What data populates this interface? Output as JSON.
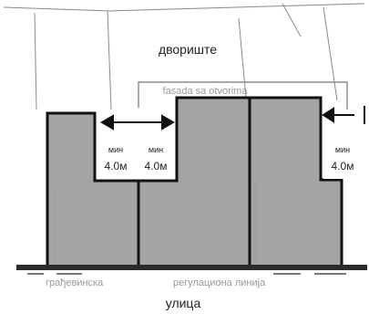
{
  "labels": {
    "yard": "двориште",
    "facade": "fasada sa otvorima",
    "building_line": "грађевинска",
    "regulation_line": "регулациона линија",
    "street": "улица"
  },
  "setbacks": {
    "left_min_label": "мин",
    "left_value": "4.0м",
    "middle_min_label": "мин",
    "middle_value": "4.0м",
    "right_min_label": "мин",
    "right_value": "4.0м"
  },
  "colors": {
    "building_fill": "#a4a4a4",
    "outline": "#111111",
    "street_line": "#2b2b2b",
    "background_lines": "#8a8a8a",
    "label_box": "#ffffff"
  }
}
